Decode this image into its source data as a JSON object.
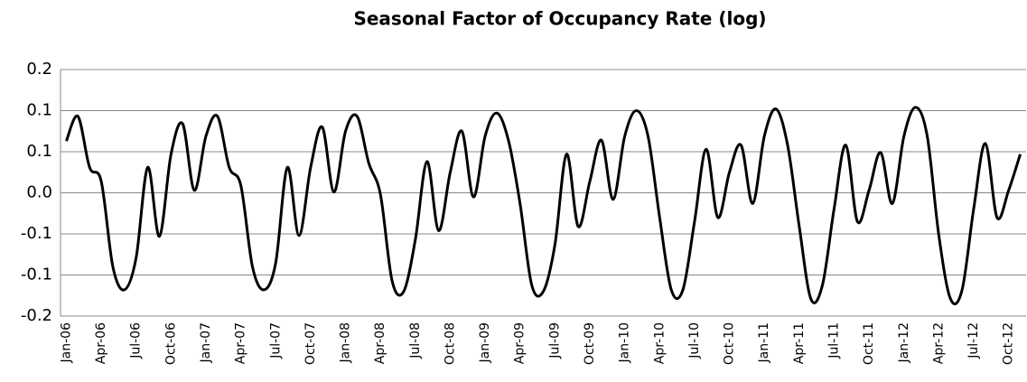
{
  "chart_data": {
    "type": "line",
    "title": "Seasonal Factor of Occupancy Rate (log)",
    "categories": [
      "Jan-06",
      null,
      null,
      "Apr-06",
      null,
      null,
      "Jul-06",
      null,
      null,
      "Oct-06",
      null,
      null,
      "Jan-07",
      null,
      null,
      "Apr-07",
      null,
      null,
      "Jul-07",
      null,
      null,
      "Oct-07",
      null,
      null,
      "Jan-08",
      null,
      null,
      "Apr-08",
      null,
      null,
      "Jul-08",
      null,
      null,
      "Oct-08",
      null,
      null,
      "Jan-09",
      null,
      null,
      "Apr-09",
      null,
      null,
      "Jul-09",
      null,
      null,
      "Oct-09",
      null,
      null,
      "Jan-10",
      null,
      null,
      "Apr-10",
      null,
      null,
      "Jul-10",
      null,
      null,
      "Oct-10",
      null,
      null,
      "Jan-11",
      null,
      null,
      "Apr-11",
      null,
      null,
      "Jul-11",
      null,
      null,
      "Oct-11",
      null,
      null,
      "Jan-12",
      null,
      null,
      "Apr-12",
      null,
      null,
      "Jul-12",
      null,
      null,
      "Oct-12",
      null
    ],
    "values": [
      0.063,
      0.093,
      0.031,
      0.014,
      -0.09,
      -0.118,
      -0.079,
      0.031,
      -0.053,
      0.047,
      0.084,
      0.003,
      0.069,
      0.093,
      0.031,
      0.009,
      -0.09,
      -0.118,
      -0.085,
      0.031,
      -0.052,
      0.031,
      0.08,
      0.001,
      0.075,
      0.093,
      0.036,
      -0.002,
      -0.107,
      -0.12,
      -0.057,
      0.038,
      -0.046,
      0.025,
      0.075,
      -0.005,
      0.069,
      0.097,
      0.064,
      -0.013,
      -0.112,
      -0.12,
      -0.063,
      0.047,
      -0.041,
      0.014,
      0.064,
      -0.008,
      0.069,
      0.1,
      0.069,
      -0.03,
      -0.118,
      -0.118,
      -0.035,
      0.053,
      -0.03,
      0.025,
      0.058,
      -0.013,
      0.069,
      0.102,
      0.058,
      -0.041,
      -0.129,
      -0.112,
      -0.019,
      0.058,
      -0.035,
      0.003,
      0.049,
      -0.013,
      0.069,
      0.104,
      0.069,
      -0.052,
      -0.129,
      -0.118,
      -0.019,
      0.06,
      -0.03,
      0.003,
      0.047
    ],
    "color": "#000000",
    "ylim": [
      -0.15,
      0.15
    ],
    "yticks": [
      {
        "value": -0.15,
        "label": "-0.2"
      },
      {
        "value": -0.1,
        "label": "-0.1"
      },
      {
        "value": -0.05,
        "label": "-0.1"
      },
      {
        "value": 0,
        "label": "0.0"
      },
      {
        "value": 0.05,
        "label": "0.1"
      },
      {
        "value": 0.1,
        "label": "0.1"
      },
      {
        "value": 0.15,
        "label": "0.2"
      }
    ],
    "grid": true
  }
}
